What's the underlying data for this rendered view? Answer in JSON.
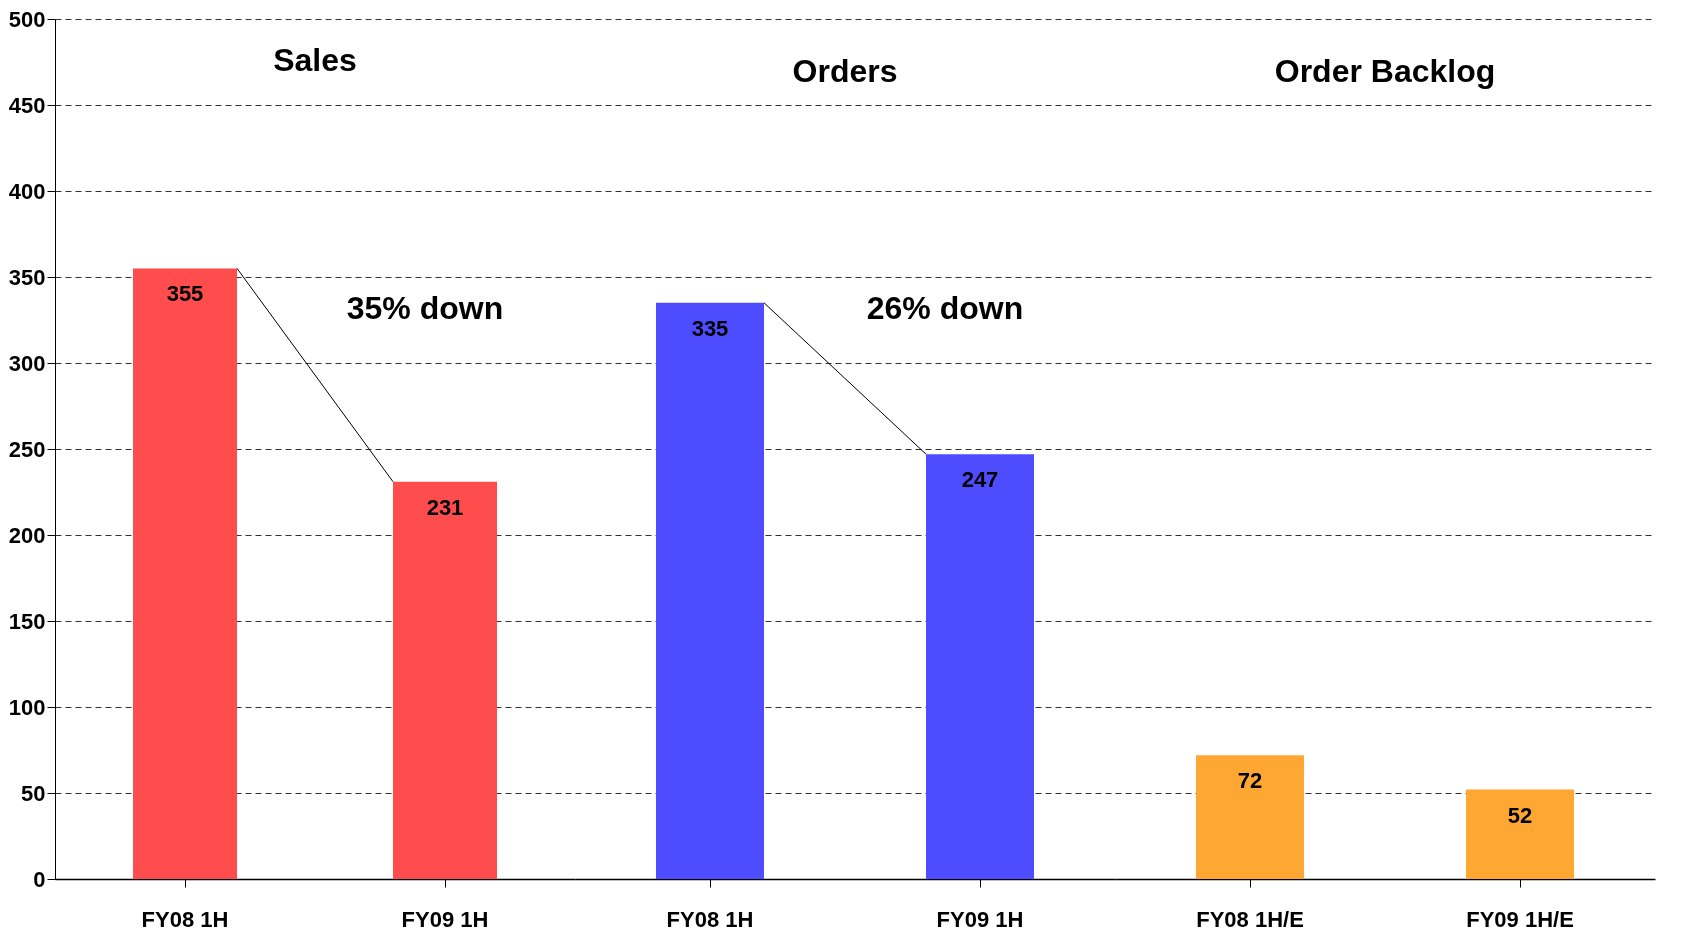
{
  "chart_data": [
    {
      "type": "bar",
      "title": "Sales",
      "categories": [
        "FY08 1H",
        "FY09 1H"
      ],
      "values": [
        355,
        231
      ],
      "color": "#ff4d4d",
      "data_labels": true,
      "ylim": [
        0,
        500
      ],
      "yticks": [
        0,
        50,
        100,
        150,
        200,
        250,
        300,
        350,
        400,
        450,
        500
      ],
      "grid": "y",
      "annotations": [
        "35% down"
      ]
    },
    {
      "type": "bar",
      "title": "Orders",
      "categories": [
        "FY08 1H",
        "FY09 1H"
      ],
      "values": [
        335,
        247
      ],
      "color": "#4d4dff",
      "data_labels": true,
      "ylim": [
        0,
        500
      ],
      "yticks": [
        0,
        50,
        100,
        150,
        200,
        250,
        300,
        350,
        400,
        450,
        500
      ],
      "grid": "y",
      "tick_labels": "x",
      "annotations": [
        "26% down"
      ]
    },
    {
      "type": "bar",
      "title": "Order Backlog",
      "categories": [
        "FY08 1H/E",
        "FY09 1H/E"
      ],
      "values": [
        72,
        52
      ],
      "color": "#ffa733",
      "data_labels": true,
      "ylim": [
        0,
        500
      ],
      "yticks": [
        0,
        50,
        100,
        150,
        200,
        250,
        300,
        350,
        400,
        450,
        500
      ],
      "grid": "y",
      "tick_labels": "x"
    }
  ]
}
